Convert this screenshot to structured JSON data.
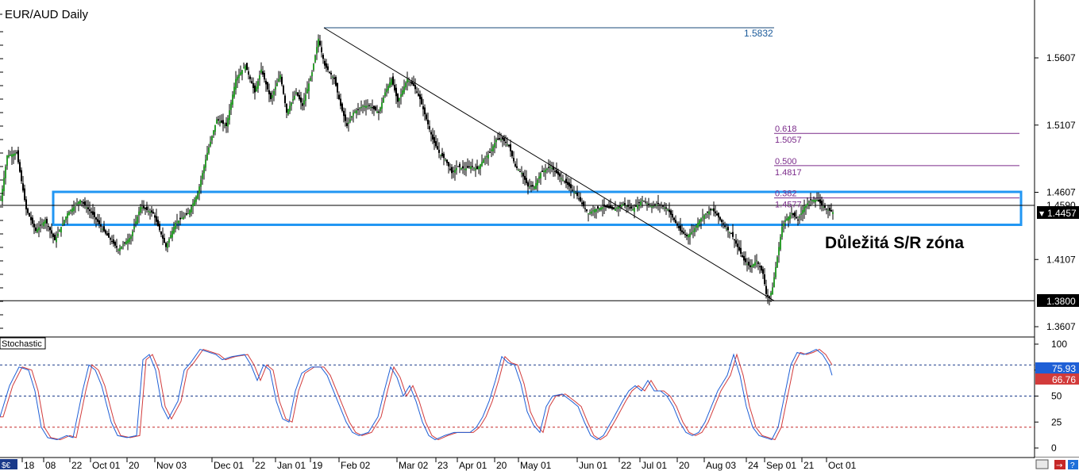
{
  "chart_data": {
    "type": "candlestick",
    "title": "EUR/AUD Daily",
    "annotation": "Důležitá S/R zóna",
    "indicator_label": "Stochastic",
    "price_axis": {
      "ylim": [
        1.345,
        1.585
      ],
      "ticks": [
        "1.5607",
        "1.5107",
        "1.4607",
        "1.4107",
        "1.3607"
      ],
      "current_price": "1.4457",
      "support_tag": "1.3800",
      "partial_tag": "1.4590"
    },
    "stoch_axis": {
      "ylim": [
        0,
        100
      ],
      "ticks": [
        "100",
        "75",
        "50",
        "25",
        "0"
      ],
      "tag_blue": "75.93",
      "tag_red": "66.76",
      "levels": [
        80,
        50,
        20
      ]
    },
    "x_labels": [
      "18",
      "08",
      "22",
      "Oct 01",
      "20",
      "Nov 03",
      "Dec 01",
      "22",
      "Jan 01",
      "19",
      "Feb 02",
      "Mar 02",
      "23",
      "Apr 01",
      "20",
      "May 01",
      "Jun 01",
      "22",
      "Jul 01",
      "20",
      "Aug 03",
      "24",
      "Sep 01",
      "21",
      "Oct 01"
    ],
    "high_label": "1.5832",
    "support_level": 1.38,
    "sr_zone": {
      "top": 1.461,
      "bottom": 1.4365
    },
    "horizontal_line": 1.451,
    "fibonacci": [
      {
        "level": "0.618",
        "price": "1.5057"
      },
      {
        "level": "0.500",
        "price": "1.4817"
      },
      {
        "level": "0.382",
        "price": "1.4577"
      }
    ],
    "price_path": [
      [
        0,
        1.455
      ],
      [
        4,
        1.488
      ],
      [
        10,
        1.49
      ],
      [
        16,
        1.448
      ],
      [
        22,
        1.432
      ],
      [
        28,
        1.44
      ],
      [
        34,
        1.425
      ],
      [
        42,
        1.445
      ],
      [
        50,
        1.455
      ],
      [
        58,
        1.444
      ],
      [
        66,
        1.43
      ],
      [
        74,
        1.418
      ],
      [
        82,
        1.428
      ],
      [
        88,
        1.45
      ],
      [
        96,
        1.445
      ],
      [
        104,
        1.42
      ],
      [
        110,
        1.438
      ],
      [
        118,
        1.445
      ],
      [
        124,
        1.46
      ],
      [
        130,
        1.49
      ],
      [
        136,
        1.515
      ],
      [
        142,
        1.51
      ],
      [
        148,
        1.545
      ],
      [
        154,
        1.555
      ],
      [
        160,
        1.535
      ],
      [
        164,
        1.552
      ],
      [
        170,
        1.53
      ],
      [
        176,
        1.548
      ],
      [
        180,
        1.52
      ],
      [
        186,
        1.535
      ],
      [
        190,
        1.525
      ],
      [
        196,
        1.55
      ],
      [
        200,
        1.575
      ],
      [
        204,
        1.555
      ],
      [
        210,
        1.545
      ],
      [
        214,
        1.525
      ],
      [
        218,
        1.51
      ],
      [
        222,
        1.52
      ],
      [
        228,
        1.525
      ],
      [
        232,
        1.525
      ],
      [
        238,
        1.52
      ],
      [
        242,
        1.535
      ],
      [
        246,
        1.545
      ],
      [
        250,
        1.528
      ],
      [
        256,
        1.545
      ],
      [
        260,
        1.54
      ],
      [
        264,
        1.53
      ],
      [
        268,
        1.515
      ],
      [
        272,
        1.5
      ],
      [
        276,
        1.49
      ],
      [
        280,
        1.485
      ],
      [
        284,
        1.475
      ],
      [
        288,
        1.48
      ],
      [
        292,
        1.478
      ],
      [
        296,
        1.48
      ],
      [
        300,
        1.478
      ],
      [
        304,
        1.485
      ],
      [
        308,
        1.49
      ],
      [
        312,
        1.5
      ],
      [
        316,
        1.5
      ],
      [
        320,
        1.495
      ],
      [
        324,
        1.48
      ],
      [
        328,
        1.475
      ],
      [
        332,
        1.465
      ],
      [
        336,
        1.465
      ],
      [
        340,
        1.475
      ],
      [
        346,
        1.48
      ],
      [
        350,
        1.475
      ],
      [
        354,
        1.47
      ],
      [
        358,
        1.465
      ],
      [
        362,
        1.46
      ],
      [
        366,
        1.452
      ],
      [
        370,
        1.445
      ],
      [
        374,
        1.448
      ],
      [
        380,
        1.45
      ],
      [
        386,
        1.448
      ],
      [
        392,
        1.452
      ],
      [
        398,
        1.448
      ],
      [
        404,
        1.455
      ],
      [
        410,
        1.45
      ],
      [
        414,
        1.452
      ],
      [
        420,
        1.448
      ],
      [
        424,
        1.44
      ],
      [
        428,
        1.432
      ],
      [
        432,
        1.428
      ],
      [
        436,
        1.432
      ],
      [
        440,
        1.44
      ],
      [
        444,
        1.445
      ],
      [
        448,
        1.448
      ],
      [
        452,
        1.442
      ],
      [
        456,
        1.435
      ],
      [
        460,
        1.43
      ],
      [
        464,
        1.42
      ],
      [
        468,
        1.41
      ],
      [
        472,
        1.405
      ],
      [
        476,
        1.41
      ],
      [
        480,
        1.4
      ],
      [
        482,
        1.385
      ],
      [
        484,
        1.382
      ],
      [
        486,
        1.39
      ],
      [
        488,
        1.405
      ],
      [
        490,
        1.42
      ],
      [
        492,
        1.435
      ],
      [
        494,
        1.44
      ],
      [
        498,
        1.445
      ],
      [
        502,
        1.44
      ],
      [
        506,
        1.45
      ],
      [
        510,
        1.455
      ],
      [
        514,
        1.455
      ],
      [
        518,
        1.45
      ],
      [
        522,
        1.447
      ],
      [
        524,
        1.446
      ]
    ],
    "stoch_path": [
      [
        0,
        30
      ],
      [
        6,
        60
      ],
      [
        12,
        78
      ],
      [
        18,
        75
      ],
      [
        22,
        55
      ],
      [
        26,
        20
      ],
      [
        30,
        10
      ],
      [
        36,
        8
      ],
      [
        42,
        12
      ],
      [
        46,
        10
      ],
      [
        52,
        55
      ],
      [
        56,
        80
      ],
      [
        60,
        75
      ],
      [
        64,
        60
      ],
      [
        70,
        25
      ],
      [
        74,
        12
      ],
      [
        80,
        10
      ],
      [
        86,
        12
      ],
      [
        90,
        85
      ],
      [
        94,
        90
      ],
      [
        98,
        75
      ],
      [
        102,
        40
      ],
      [
        106,
        28
      ],
      [
        112,
        45
      ],
      [
        116,
        75
      ],
      [
        120,
        82
      ],
      [
        126,
        95
      ],
      [
        132,
        92
      ],
      [
        136,
        90
      ],
      [
        140,
        85
      ],
      [
        146,
        88
      ],
      [
        154,
        90
      ],
      [
        158,
        80
      ],
      [
        162,
        65
      ],
      [
        166,
        80
      ],
      [
        170,
        75
      ],
      [
        174,
        45
      ],
      [
        178,
        28
      ],
      [
        182,
        25
      ],
      [
        186,
        55
      ],
      [
        190,
        72
      ],
      [
        196,
        78
      ],
      [
        202,
        78
      ],
      [
        206,
        70
      ],
      [
        210,
        55
      ],
      [
        214,
        40
      ],
      [
        218,
        25
      ],
      [
        222,
        15
      ],
      [
        226,
        12
      ],
      [
        232,
        15
      ],
      [
        238,
        30
      ],
      [
        242,
        55
      ],
      [
        246,
        78
      ],
      [
        250,
        68
      ],
      [
        254,
        50
      ],
      [
        258,
        60
      ],
      [
        262,
        45
      ],
      [
        266,
        25
      ],
      [
        270,
        12
      ],
      [
        274,
        8
      ],
      [
        280,
        12
      ],
      [
        286,
        15
      ],
      [
        292,
        15
      ],
      [
        296,
        15
      ],
      [
        300,
        20
      ],
      [
        304,
        30
      ],
      [
        308,
        45
      ],
      [
        312,
        65
      ],
      [
        316,
        88
      ],
      [
        320,
        82
      ],
      [
        324,
        80
      ],
      [
        328,
        62
      ],
      [
        332,
        35
      ],
      [
        336,
        22
      ],
      [
        340,
        15
      ],
      [
        344,
        40
      ],
      [
        348,
        50
      ],
      [
        354,
        52
      ],
      [
        360,
        45
      ],
      [
        364,
        40
      ],
      [
        368,
        25
      ],
      [
        372,
        12
      ],
      [
        376,
        8
      ],
      [
        380,
        12
      ],
      [
        386,
        28
      ],
      [
        392,
        45
      ],
      [
        396,
        55
      ],
      [
        400,
        60
      ],
      [
        404,
        55
      ],
      [
        408,
        65
      ],
      [
        412,
        55
      ],
      [
        416,
        55
      ],
      [
        420,
        50
      ],
      [
        424,
        40
      ],
      [
        428,
        25
      ],
      [
        432,
        15
      ],
      [
        436,
        12
      ],
      [
        440,
        15
      ],
      [
        444,
        25
      ],
      [
        448,
        40
      ],
      [
        452,
        55
      ],
      [
        458,
        70
      ],
      [
        462,
        90
      ],
      [
        466,
        70
      ],
      [
        470,
        40
      ],
      [
        474,
        20
      ],
      [
        478,
        12
      ],
      [
        482,
        10
      ],
      [
        486,
        8
      ],
      [
        490,
        20
      ],
      [
        494,
        50
      ],
      [
        498,
        80
      ],
      [
        502,
        92
      ],
      [
        506,
        90
      ],
      [
        510,
        92
      ],
      [
        514,
        95
      ],
      [
        518,
        90
      ],
      [
        522,
        80
      ],
      [
        524,
        70
      ]
    ]
  }
}
